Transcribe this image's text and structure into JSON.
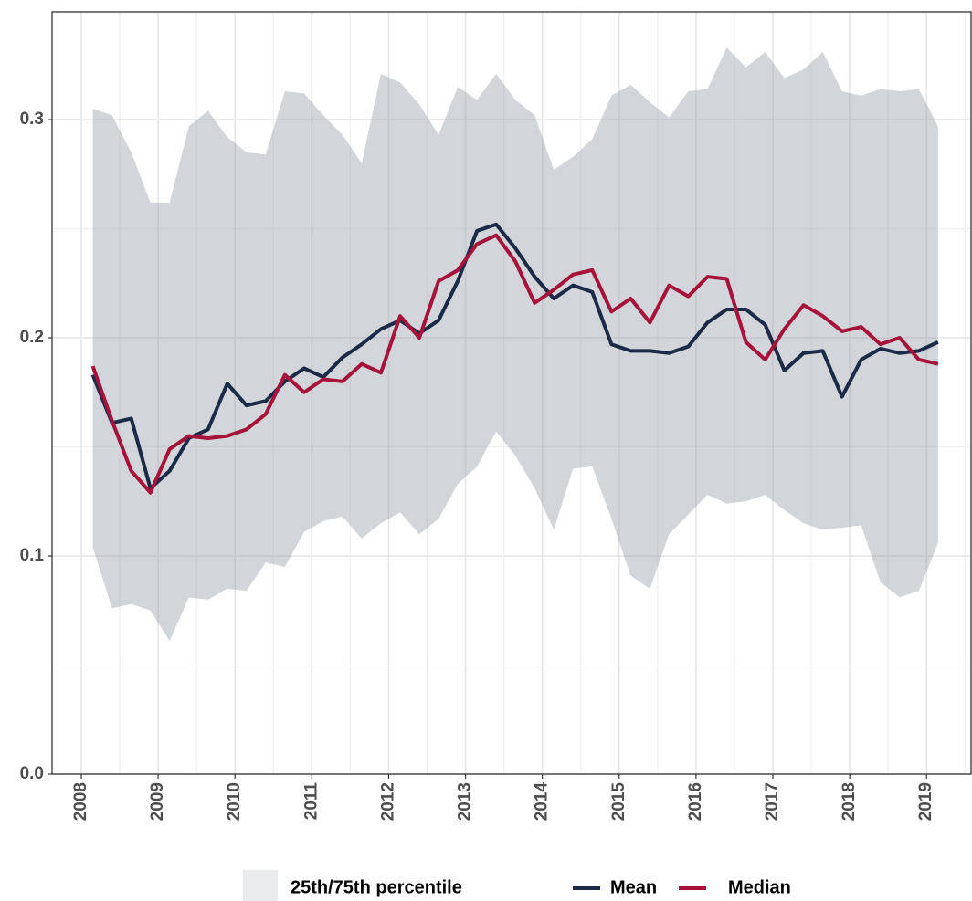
{
  "chart_data": {
    "type": "line",
    "x": [
      2008.15,
      2008.4,
      2008.65,
      2008.9,
      2009.15,
      2009.4,
      2009.65,
      2009.9,
      2010.15,
      2010.4,
      2010.65,
      2010.9,
      2011.15,
      2011.4,
      2011.65,
      2011.9,
      2012.15,
      2012.4,
      2012.65,
      2012.9,
      2013.15,
      2013.4,
      2013.65,
      2013.9,
      2014.15,
      2014.4,
      2014.65,
      2014.9,
      2015.15,
      2015.4,
      2015.65,
      2015.9,
      2016.15,
      2016.4,
      2016.65,
      2016.9,
      2017.15,
      2017.4,
      2017.65,
      2017.9,
      2018.15,
      2018.4,
      2018.65,
      2018.9,
      2019.15
    ],
    "band": {
      "name": "25th/75th percentile",
      "color": "#9ca2ad",
      "upper": [
        0.305,
        0.302,
        0.285,
        0.262,
        0.262,
        0.297,
        0.304,
        0.292,
        0.285,
        0.284,
        0.313,
        0.312,
        0.302,
        0.293,
        0.28,
        0.321,
        0.317,
        0.307,
        0.293,
        0.315,
        0.309,
        0.321,
        0.309,
        0.302,
        0.277,
        0.283,
        0.291,
        0.311,
        0.316,
        0.308,
        0.301,
        0.313,
        0.314,
        0.333,
        0.324,
        0.331,
        0.319,
        0.323,
        0.331,
        0.313,
        0.311,
        0.314,
        0.313,
        0.314,
        0.297
      ],
      "lower": [
        0.104,
        0.076,
        0.078,
        0.075,
        0.061,
        0.081,
        0.08,
        0.085,
        0.084,
        0.097,
        0.095,
        0.111,
        0.116,
        0.118,
        0.108,
        0.115,
        0.12,
        0.11,
        0.117,
        0.133,
        0.141,
        0.157,
        0.146,
        0.131,
        0.112,
        0.14,
        0.141,
        0.117,
        0.091,
        0.085,
        0.11,
        0.119,
        0.128,
        0.124,
        0.125,
        0.128,
        0.121,
        0.115,
        0.112,
        0.113,
        0.114,
        0.088,
        0.081,
        0.084,
        0.106
      ]
    },
    "series": [
      {
        "name": "Mean",
        "color": "#1b2a47",
        "values": [
          0.183,
          0.161,
          0.163,
          0.131,
          0.139,
          0.154,
          0.158,
          0.179,
          0.169,
          0.171,
          0.18,
          0.186,
          0.182,
          0.191,
          0.197,
          0.204,
          0.208,
          0.202,
          0.208,
          0.226,
          0.249,
          0.252,
          0.241,
          0.228,
          0.218,
          0.224,
          0.221,
          0.197,
          0.194,
          0.194,
          0.193,
          0.196,
          0.207,
          0.213,
          0.213,
          0.206,
          0.185,
          0.193,
          0.194,
          0.173,
          0.19,
          0.195,
          0.193,
          0.194,
          0.198
        ]
      },
      {
        "name": "Median",
        "color": "#a6123a",
        "values": [
          0.187,
          0.162,
          0.139,
          0.129,
          0.149,
          0.155,
          0.154,
          0.155,
          0.158,
          0.165,
          0.183,
          0.175,
          0.181,
          0.18,
          0.188,
          0.184,
          0.21,
          0.2,
          0.226,
          0.231,
          0.243,
          0.247,
          0.235,
          0.216,
          0.222,
          0.229,
          0.231,
          0.212,
          0.218,
          0.207,
          0.224,
          0.219,
          0.228,
          0.227,
          0.198,
          0.19,
          0.204,
          0.215,
          0.21,
          0.203,
          0.205,
          0.197,
          0.2,
          0.19,
          0.188
        ]
      }
    ],
    "xlim": [
      2007.62,
      2019.58
    ],
    "xticks": [
      2008,
      2009,
      2010,
      2011,
      2012,
      2013,
      2014,
      2015,
      2016,
      2017,
      2018,
      2019
    ],
    "ylim": [
      0,
      0.3494
    ],
    "yticks": [
      {
        "value": 0,
        "label": "0.0"
      },
      0.1,
      0.2,
      0.3
    ],
    "grid": true,
    "legend": "bottom"
  }
}
